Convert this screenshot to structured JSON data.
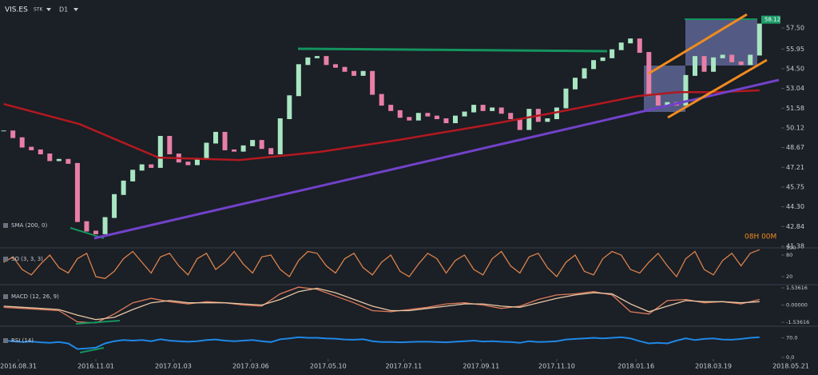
{
  "header": {
    "symbol": "VIS.ES",
    "instrument": "STK",
    "timeframe": "D1"
  },
  "chart_data": [
    {
      "type": "candlestick",
      "title": "SMA (200, 0)",
      "x": [
        0,
        5,
        10,
        15,
        20,
        25,
        30,
        35,
        40,
        45,
        50,
        55,
        60,
        65,
        70,
        75,
        80,
        85,
        90,
        95,
        100,
        105,
        110,
        115,
        120,
        125,
        130,
        135,
        140,
        145,
        150,
        155,
        160,
        165,
        170,
        175,
        180,
        185,
        190,
        195,
        200,
        205,
        210,
        215,
        220,
        225,
        230,
        235,
        240,
        245,
        250,
        255,
        260,
        265,
        270,
        275,
        280,
        285,
        290,
        295,
        300,
        305,
        310,
        315,
        320,
        325,
        330,
        335,
        340,
        345,
        350,
        355,
        360,
        365,
        370,
        375,
        380,
        385,
        390,
        395,
        400,
        405,
        410
      ],
      "values": [
        49.9,
        49.4,
        48.7,
        48.5,
        48.2,
        47.7,
        47.8,
        47.5,
        43.2,
        42.5,
        42.3,
        43.5,
        45.2,
        46.2,
        47.0,
        47.4,
        47.2,
        49.5,
        48.2,
        47.6,
        47.4,
        47.8,
        49.0,
        49.8,
        48.5,
        48.4,
        48.8,
        49.2,
        48.6,
        48.2,
        50.8,
        52.5,
        54.8,
        55.3,
        55.4,
        54.8,
        54.6,
        54.3,
        54.0,
        54.3,
        52.6,
        51.8,
        51.4,
        50.9,
        50.7,
        51.2,
        51.0,
        50.8,
        50.5,
        51.0,
        51.3,
        51.8,
        51.4,
        51.6,
        51.2,
        50.8,
        50.0,
        51.5,
        50.6,
        50.8,
        51.6,
        53.0,
        53.8,
        54.5,
        55.1,
        55.3,
        55.9,
        56.4,
        56.7,
        55.7,
        52.5,
        51.8,
        52.0,
        51.8,
        54.0,
        55.4,
        54.3,
        55.3,
        55.5,
        55.0,
        54.8,
        55.5,
        57.8
      ],
      "up_color": "#a8e6c1",
      "down_color": "#e77fa6",
      "overlay": {
        "x": [
          0,
          41,
          84,
          128,
          171,
          214,
          258,
          301,
          344,
          366,
          387,
          410
        ],
        "values": [
          51.89,
          50.41,
          47.93,
          47.75,
          48.34,
          49.23,
          50.24,
          51.3,
          52.48,
          52.77,
          52.77,
          52.9
        ],
        "color": "#b3191f"
      },
      "xlim": [
        -2,
        440
      ],
      "ylim": [
        41.26,
        59.1
      ],
      "yticks": [
        41.38,
        42.84,
        {
          "value": 44.3,
          "label": "44.30"
        },
        45.75,
        47.21,
        48.67,
        50.12,
        51.58,
        53.04,
        {
          "value": 54.5,
          "label": "54.50"
        },
        55.95,
        {
          "value": 57.5,
          "label": "57.50"
        }
      ],
      "last_price": 58.12,
      "last_price_color": "#1e9e6a",
      "countdown": "08H 00M"
    },
    {
      "type": "line",
      "title": "SO (3, 3, 3)",
      "x": [
        0,
        5,
        10,
        15,
        20,
        25,
        30,
        35,
        40,
        45,
        50,
        55,
        60,
        65,
        70,
        75,
        80,
        85,
        90,
        95,
        100,
        105,
        110,
        115,
        120,
        125,
        130,
        135,
        140,
        145,
        150,
        155,
        160,
        165,
        170,
        175,
        180,
        185,
        190,
        195,
        200,
        205,
        210,
        215,
        220,
        225,
        230,
        235,
        240,
        245,
        250,
        255,
        260,
        265,
        270,
        275,
        280,
        285,
        290,
        295,
        300,
        305,
        310,
        315,
        320,
        325,
        330,
        335,
        340,
        345,
        350,
        355,
        360,
        365,
        370,
        375,
        380,
        385,
        390,
        395,
        400,
        405,
        410
      ],
      "values": [
        60,
        75,
        40,
        25,
        55,
        80,
        45,
        30,
        70,
        85,
        20,
        15,
        35,
        70,
        90,
        60,
        30,
        75,
        85,
        50,
        25,
        70,
        85,
        40,
        60,
        90,
        55,
        30,
        75,
        80,
        40,
        20,
        65,
        90,
        85,
        50,
        30,
        70,
        85,
        45,
        25,
        60,
        80,
        35,
        20,
        55,
        85,
        70,
        30,
        65,
        80,
        40,
        25,
        70,
        90,
        50,
        30,
        75,
        85,
        45,
        20,
        60,
        80,
        35,
        25,
        70,
        90,
        80,
        40,
        30,
        60,
        85,
        50,
        20,
        70,
        90,
        40,
        25,
        65,
        85,
        50,
        85,
        95
      ],
      "color": "#d9824a",
      "xlim": [
        -2,
        440
      ],
      "ylim": [
        0,
        100
      ],
      "yticks": [
        20,
        80,
        100
      ]
    },
    {
      "type": "line",
      "title": "MACD (12, 26, 9)",
      "x": [
        0,
        10,
        20,
        30,
        40,
        50,
        60,
        70,
        80,
        90,
        100,
        110,
        120,
        130,
        140,
        150,
        160,
        170,
        180,
        190,
        200,
        210,
        220,
        230,
        240,
        250,
        260,
        270,
        280,
        290,
        300,
        310,
        320,
        330,
        340,
        350,
        360,
        370,
        380,
        390,
        400,
        410
      ],
      "series": [
        {
          "color": "#e07b5b",
          "values": [
            -0.2,
            -0.3,
            -0.4,
            -0.5,
            -1.5,
            -1.6,
            -0.8,
            0.2,
            0.6,
            0.3,
            0.1,
            0.3,
            0.2,
            0.0,
            -0.1,
            1.0,
            1.6,
            1.4,
            0.8,
            0.2,
            -0.5,
            -0.6,
            -0.4,
            -0.2,
            0.1,
            0.2,
            0.0,
            -0.3,
            -0.1,
            0.5,
            0.9,
            1.0,
            1.2,
            0.9,
            -0.6,
            -0.8,
            0.4,
            0.5,
            0.2,
            0.3,
            0.1,
            0.5
          ]
        },
        {
          "color": "#e8c7a4",
          "values": [
            -0.1,
            -0.2,
            -0.3,
            -0.4,
            -0.9,
            -1.3,
            -1.1,
            -0.4,
            0.2,
            0.4,
            0.2,
            0.2,
            0.2,
            0.1,
            0.0,
            0.5,
            1.2,
            1.5,
            1.1,
            0.5,
            -0.1,
            -0.5,
            -0.5,
            -0.3,
            -0.1,
            0.1,
            0.1,
            -0.1,
            -0.2,
            0.2,
            0.6,
            0.9,
            1.1,
            1.0,
            0.1,
            -0.6,
            -0.1,
            0.4,
            0.3,
            0.3,
            0.2,
            0.3
          ]
        }
      ],
      "xlim": [
        -2,
        440
      ],
      "ylim": [
        -1.75,
        1.75
      ],
      "yticks": [
        -1.53616,
        {
          "value": 0,
          "label": "0.00000"
        },
        1.53616
      ]
    },
    {
      "type": "line",
      "title": "RSI (14)",
      "x": [
        0,
        5,
        10,
        15,
        20,
        25,
        30,
        35,
        40,
        45,
        50,
        55,
        60,
        65,
        70,
        75,
        80,
        85,
        90,
        95,
        100,
        105,
        110,
        115,
        120,
        125,
        130,
        135,
        140,
        145,
        150,
        155,
        160,
        165,
        170,
        175,
        180,
        185,
        190,
        195,
        200,
        205,
        210,
        215,
        220,
        225,
        230,
        235,
        240,
        245,
        250,
        255,
        260,
        265,
        270,
        275,
        280,
        285,
        290,
        295,
        300,
        305,
        310,
        315,
        320,
        325,
        330,
        335,
        340,
        345,
        350,
        355,
        360,
        365,
        370,
        375,
        380,
        385,
        390,
        395,
        400,
        405,
        410
      ],
      "values": [
        60,
        58,
        55,
        57,
        54,
        52,
        55,
        50,
        30,
        32,
        35,
        50,
        58,
        62,
        60,
        62,
        58,
        65,
        60,
        58,
        56,
        58,
        62,
        64,
        60,
        58,
        60,
        62,
        58,
        55,
        65,
        68,
        72,
        70,
        70,
        68,
        67,
        64,
        63,
        65,
        58,
        55,
        55,
        54,
        55,
        56,
        56,
        55,
        54,
        56,
        58,
        60,
        57,
        58,
        56,
        55,
        52,
        58,
        55,
        56,
        58,
        64,
        66,
        68,
        70,
        68,
        70,
        72,
        68,
        58,
        50,
        52,
        50,
        60,
        68,
        62,
        66,
        68,
        64,
        63,
        66,
        70,
        72
      ],
      "color": "#1e88e5",
      "xlim": [
        -2,
        440
      ],
      "ylim": [
        0,
        100
      ],
      "yticks": [
        {
          "value": 0,
          "label": "0.0"
        },
        {
          "value": 70,
          "label": "70.0"
        }
      ],
      "xticks": [
        {
          "value": 8,
          "label": "2016.08.31"
        },
        {
          "value": 50,
          "label": "2016.11.01"
        },
        {
          "value": 92,
          "label": "2017.01.03"
        },
        {
          "value": 134,
          "label": "2017.03.06"
        },
        {
          "value": 176,
          "label": "2017.05.10"
        },
        {
          "value": 217,
          "label": "2017.07.11"
        },
        {
          "value": 259,
          "label": "2017.09.11"
        },
        {
          "value": 300,
          "label": "2017.11.10"
        },
        {
          "value": 343,
          "label": "2018.01.16"
        },
        {
          "value": 385,
          "label": "2018.03.19"
        },
        {
          "value": 427,
          "label": "2018.05.21"
        }
      ]
    }
  ]
}
